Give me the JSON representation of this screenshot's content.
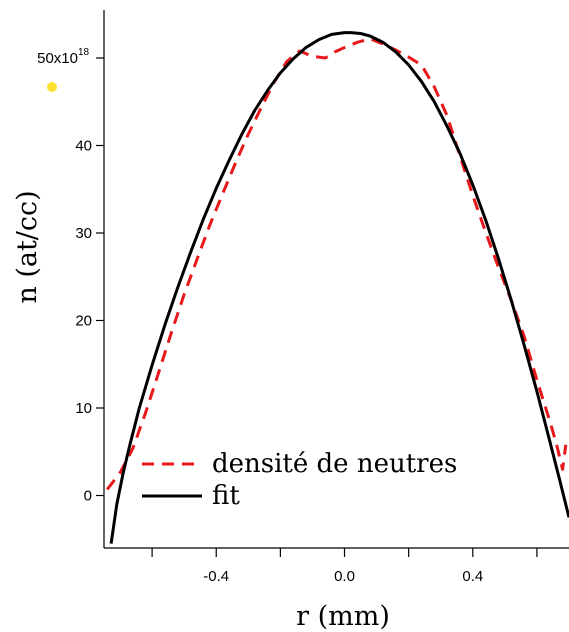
{
  "chart_data": {
    "type": "line",
    "xlabel": "r (mm)",
    "ylabel": "n (at/cc)",
    "xlim": [
      -0.75,
      0.7
    ],
    "ylim": [
      -6,
      58
    ],
    "x_ticks": [
      {
        "value": -0.4,
        "label": "-0.4"
      },
      {
        "value": 0.0,
        "label": "0.0"
      },
      {
        "value": 0.4,
        "label": "0.4"
      }
    ],
    "x_minor_ticks": [
      -0.6,
      -0.2,
      0.2,
      0.6
    ],
    "y_ticks": [
      {
        "value": 0,
        "label": "0"
      },
      {
        "value": 10,
        "label": "10"
      },
      {
        "value": 20,
        "label": "20"
      },
      {
        "value": 30,
        "label": "30"
      },
      {
        "value": 40,
        "label": "40"
      },
      {
        "value": 50,
        "label": "50x10",
        "exponent": "18"
      }
    ],
    "legend_position": "bottom-center",
    "series": [
      {
        "name": "densité de neutres",
        "style": "dashed",
        "color": "#e8191b",
        "x": [
          -0.74,
          -0.7,
          -0.66,
          -0.62,
          -0.58,
          -0.54,
          -0.5,
          -0.46,
          -0.42,
          -0.38,
          -0.34,
          -0.3,
          -0.26,
          -0.22,
          -0.18,
          -0.14,
          -0.1,
          -0.06,
          -0.03,
          0.0,
          0.04,
          0.08,
          0.12,
          0.16,
          0.2,
          0.24,
          0.28,
          0.32,
          0.36,
          0.4,
          0.44,
          0.48,
          0.52,
          0.56,
          0.6,
          0.64,
          0.66,
          0.68,
          0.69
        ],
        "y": [
          0.7,
          2.6,
          5.4,
          9.5,
          14.0,
          18.6,
          23.0,
          27.0,
          30.9,
          34.5,
          38.0,
          41.3,
          44.3,
          47.2,
          49.6,
          50.8,
          50.2,
          50.0,
          50.7,
          51.2,
          51.8,
          52.2,
          51.6,
          50.9,
          50.1,
          49.2,
          46.7,
          43.4,
          38.8,
          34.3,
          30.1,
          26.1,
          22.3,
          18.2,
          13.2,
          8.5,
          6.0,
          3.0,
          5.8
        ]
      },
      {
        "name": "fit",
        "style": "solid",
        "color": "#000000",
        "x": [
          -0.728,
          -0.71,
          -0.69,
          -0.67,
          -0.64,
          -0.6,
          -0.56,
          -0.52,
          -0.48,
          -0.44,
          -0.4,
          -0.36,
          -0.32,
          -0.28,
          -0.24,
          -0.2,
          -0.16,
          -0.12,
          -0.08,
          -0.04,
          0.0,
          0.02,
          0.05,
          0.08,
          0.12,
          0.16,
          0.2,
          0.24,
          0.28,
          0.32,
          0.36,
          0.4,
          0.44,
          0.48,
          0.52,
          0.56,
          0.6,
          0.64,
          0.67,
          0.7
        ],
        "y": [
          -5.5,
          -1.0,
          2.6,
          5.7,
          10.0,
          14.9,
          19.5,
          23.8,
          27.8,
          31.6,
          35.1,
          38.3,
          41.3,
          44.0,
          46.3,
          48.3,
          49.9,
          51.2,
          52.1,
          52.7,
          52.9,
          52.9,
          52.8,
          52.5,
          51.8,
          50.7,
          49.2,
          47.3,
          45.0,
          42.2,
          39.1,
          35.5,
          31.5,
          27.1,
          22.3,
          17.2,
          11.9,
          6.2,
          1.9,
          -2.5
        ]
      }
    ]
  },
  "marker": {
    "name": "yellow-dot",
    "color": "#ffe135"
  }
}
